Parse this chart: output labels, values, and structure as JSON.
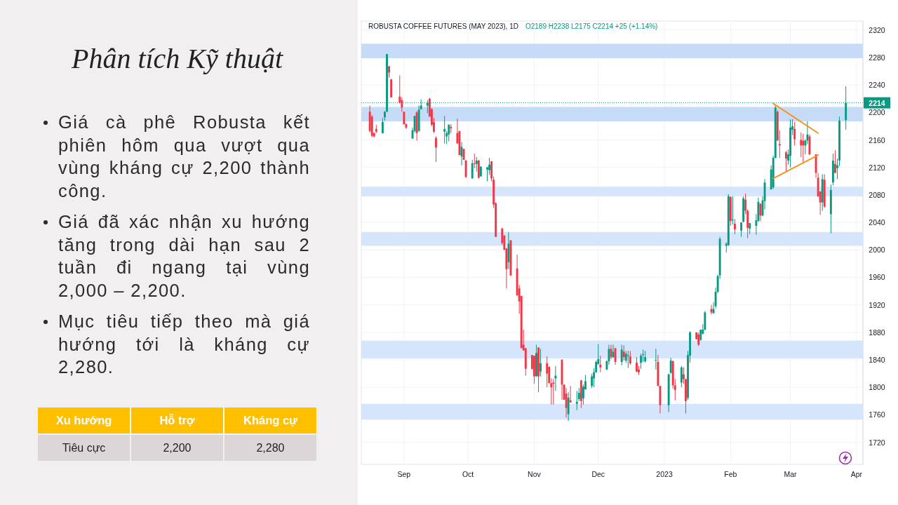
{
  "chart_data": [
    {
      "type": "candlestick",
      "title": "ROBUSTA COFFEE FUTURES (MAY 2023), 1D",
      "subtitle": "O2189 H2238 L2175 C2214 +25 (+1.14%)",
      "x": [
        "2022-08-16",
        "2022-08-17",
        "2022-08-18",
        "2022-08-19",
        "2022-08-22",
        "2022-08-23",
        "2022-08-24",
        "2022-08-25",
        "2022-08-26",
        "2022-08-30",
        "2022-08-31",
        "2022-09-01",
        "2022-09-02",
        "2022-09-05",
        "2022-09-06",
        "2022-09-07",
        "2022-09-08",
        "2022-09-09",
        "2022-09-12",
        "2022-09-13",
        "2022-09-14",
        "2022-09-15",
        "2022-09-16",
        "2022-09-20",
        "2022-09-21",
        "2022-09-22",
        "2022-09-23",
        "2022-09-26",
        "2022-09-27",
        "2022-09-28",
        "2022-09-29",
        "2022-09-30",
        "2022-10-03",
        "2022-10-04",
        "2022-10-05",
        "2022-10-06",
        "2022-10-07",
        "2022-10-10",
        "2022-10-11",
        "2022-10-12",
        "2022-10-13",
        "2022-10-14",
        "2022-10-17",
        "2022-10-18",
        "2022-10-19",
        "2022-10-20",
        "2022-10-21",
        "2022-10-24",
        "2022-10-25",
        "2022-10-26",
        "2022-10-27",
        "2022-10-28",
        "2022-10-31",
        "2022-11-01",
        "2022-11-02",
        "2022-11-03",
        "2022-11-04",
        "2022-11-07",
        "2022-11-08",
        "2022-11-09",
        "2022-11-10",
        "2022-11-11",
        "2022-11-14",
        "2022-11-15",
        "2022-11-16",
        "2022-11-17",
        "2022-11-18",
        "2022-11-21",
        "2022-11-22",
        "2022-11-23",
        "2022-11-24",
        "2022-11-25",
        "2022-11-28",
        "2022-11-29",
        "2022-11-30",
        "2022-12-01",
        "2022-12-02",
        "2022-12-05",
        "2022-12-06",
        "2022-12-07",
        "2022-12-08",
        "2022-12-09",
        "2022-12-12",
        "2022-12-13",
        "2022-12-14",
        "2022-12-15",
        "2022-12-16",
        "2022-12-19",
        "2022-12-20",
        "2022-12-21",
        "2022-12-22",
        "2022-12-23",
        "2022-12-28",
        "2022-12-29",
        "2022-12-30",
        "2023-01-03",
        "2023-01-04",
        "2023-01-05",
        "2023-01-06",
        "2023-01-09",
        "2023-01-10",
        "2023-01-11",
        "2023-01-12",
        "2023-01-13",
        "2023-01-16",
        "2023-01-17",
        "2023-01-18",
        "2023-01-19",
        "2023-01-20",
        "2023-01-23",
        "2023-01-24",
        "2023-01-25",
        "2023-01-26",
        "2023-01-27",
        "2023-01-30",
        "2023-01-31",
        "2023-02-01",
        "2023-02-02",
        "2023-02-03",
        "2023-02-06",
        "2023-02-07",
        "2023-02-08",
        "2023-02-09",
        "2023-02-10",
        "2023-02-13",
        "2023-02-14",
        "2023-02-15",
        "2023-02-16",
        "2023-02-17",
        "2023-02-20",
        "2023-02-21",
        "2023-02-22",
        "2023-02-23",
        "2023-02-24",
        "2023-02-27",
        "2023-02-28",
        "2023-03-01",
        "2023-03-02",
        "2023-03-03",
        "2023-03-06",
        "2023-03-07",
        "2023-03-08",
        "2023-03-09",
        "2023-03-10",
        "2023-03-13",
        "2023-03-14",
        "2023-03-15",
        "2023-03-16",
        "2023-03-17",
        "2023-03-20",
        "2023-03-21",
        "2023-03-22",
        "2023-03-23",
        "2023-03-24",
        "2023-03-27"
      ],
      "ohlc": [
        [
          2201,
          2210,
          2171,
          2173
        ],
        [
          2194,
          2196,
          2164,
          2166
        ],
        [
          2170,
          2171,
          2164,
          2165
        ],
        [
          2176,
          2182,
          2170,
          2172
        ],
        [
          2170,
          2192,
          2169,
          2186
        ],
        [
          2193,
          2202,
          2188,
          2201
        ],
        [
          2201,
          2285,
          2201,
          2285
        ],
        [
          2267,
          2268,
          2251,
          2258
        ],
        [
          2248,
          2249,
          2222,
          2222
        ],
        [
          2223,
          2254,
          2213,
          2214
        ],
        [
          2218,
          2222,
          2201,
          2207
        ],
        [
          2201,
          2201,
          2182,
          2183
        ],
        [
          2183,
          2184,
          2176,
          2178
        ],
        [
          2162,
          2178,
          2162,
          2174
        ],
        [
          2173,
          2195,
          2171,
          2195
        ],
        [
          2200,
          2202,
          2159,
          2170
        ],
        [
          2173,
          2210,
          2172,
          2204
        ],
        [
          2205,
          2219,
          2204,
          2210
        ],
        [
          2210,
          2218,
          2199,
          2214
        ],
        [
          2220,
          2221,
          2194,
          2194
        ],
        [
          2205,
          2206,
          2180,
          2182
        ],
        [
          2186,
          2192,
          2170,
          2172
        ],
        [
          2163,
          2165,
          2128,
          2149
        ],
        [
          2172,
          2195,
          2155,
          2176
        ],
        [
          2165,
          2173,
          2154,
          2170
        ],
        [
          2168,
          2183,
          2158,
          2182
        ],
        [
          2179,
          2183,
          2170,
          2177
        ],
        [
          2170,
          2191,
          2154,
          2155
        ],
        [
          2173,
          2173,
          2138,
          2138
        ],
        [
          2136,
          2157,
          2123,
          2150
        ],
        [
          2147,
          2147,
          2131,
          2131
        ],
        [
          2130,
          2131,
          2105,
          2106
        ],
        [
          2104,
          2131,
          2104,
          2126
        ],
        [
          2126,
          2140,
          2119,
          2125
        ],
        [
          2125,
          2135,
          2114,
          2130
        ],
        [
          2130,
          2131,
          2104,
          2105
        ],
        [
          2107,
          2122,
          2107,
          2121
        ],
        [
          2117,
          2121,
          2100,
          2120
        ],
        [
          2116,
          2134,
          2109,
          2124
        ],
        [
          2129,
          2129,
          2100,
          2104
        ],
        [
          2102,
          2107,
          2061,
          2066
        ],
        [
          2068,
          2069,
          2019,
          2019
        ],
        [
          2031,
          2032,
          2007,
          2010
        ],
        [
          2021,
          2021,
          2000,
          2000
        ],
        [
          2002,
          2003,
          1944,
          1972
        ],
        [
          1982,
          2026,
          1972,
          2009
        ],
        [
          2014,
          2014,
          1962,
          1963
        ],
        [
          1973,
          1993,
          1933,
          1934
        ],
        [
          1944,
          1949,
          1907,
          1925
        ],
        [
          1933,
          1933,
          1857,
          1857
        ],
        [
          1862,
          1884,
          1853,
          1854
        ],
        [
          1857,
          1857,
          1817,
          1827
        ],
        [
          1847,
          1847,
          1826,
          1827
        ],
        [
          1846,
          1846,
          1805,
          1816
        ],
        [
          1816,
          1862,
          1816,
          1850
        ],
        [
          1858,
          1858,
          1793,
          1816
        ],
        [
          1823,
          1856,
          1816,
          1835
        ],
        [
          1835,
          1845,
          1800,
          1820
        ],
        [
          1830,
          1830,
          1806,
          1806
        ],
        [
          1806,
          1813,
          1775,
          1800
        ],
        [
          1807,
          1812,
          1775,
          1805
        ],
        [
          1813,
          1831,
          1795,
          1817
        ],
        [
          1840,
          1841,
          1782,
          1804
        ],
        [
          1804,
          1804,
          1782,
          1782
        ],
        [
          1791,
          1799,
          1756,
          1770
        ],
        [
          1761,
          1793,
          1751,
          1785
        ],
        [
          1781,
          1802,
          1778,
          1778
        ],
        [
          1776,
          1795,
          1767,
          1779
        ],
        [
          1783,
          1799,
          1780,
          1792
        ],
        [
          1810,
          1811,
          1770,
          1780
        ],
        [
          1784,
          1804,
          1775,
          1801
        ],
        [
          1797,
          1818,
          1797,
          1809
        ],
        [
          1802,
          1820,
          1799,
          1816
        ],
        [
          1813,
          1828,
          1800,
          1822
        ],
        [
          1822,
          1839,
          1821,
          1837
        ],
        [
          1834,
          1863,
          1833,
          1841
        ],
        [
          1833,
          1846,
          1822,
          1829
        ],
        [
          1826,
          1839,
          1825,
          1838
        ],
        [
          1838,
          1862,
          1833,
          1856
        ],
        [
          1856,
          1862,
          1841,
          1844
        ],
        [
          1844,
          1862,
          1843,
          1852
        ],
        [
          1857,
          1857,
          1833,
          1837
        ],
        [
          1837,
          1862,
          1832,
          1855
        ],
        [
          1852,
          1861,
          1839,
          1844
        ],
        [
          1839,
          1853,
          1836,
          1849
        ],
        [
          1846,
          1853,
          1828,
          1847
        ],
        [
          1845,
          1853,
          1833,
          1835
        ],
        [
          1836,
          1844,
          1822,
          1823
        ],
        [
          1826,
          1831,
          1818,
          1822
        ],
        [
          1836,
          1849,
          1827,
          1846
        ],
        [
          1847,
          1855,
          1837,
          1848
        ],
        [
          1838,
          1853,
          1836,
          1844
        ],
        [
          1839,
          1856,
          1826,
          1840
        ],
        [
          1837,
          1847,
          1802,
          1802
        ],
        [
          1802,
          1802,
          1762,
          1774
        ],
        [
          1774,
          1820,
          1764,
          1819
        ],
        [
          1821,
          1843,
          1820,
          1839
        ],
        [
          1838,
          1839,
          1798,
          1803
        ],
        [
          1803,
          1812,
          1781,
          1796
        ],
        [
          1807,
          1831,
          1800,
          1829
        ],
        [
          1819,
          1829,
          1805,
          1812
        ],
        [
          1812,
          1812,
          1762,
          1780
        ],
        [
          1785,
          1853,
          1782,
          1847
        ],
        [
          1846,
          1882,
          1836,
          1880
        ],
        [
          1880,
          1880,
          1870,
          1870
        ],
        [
          1877,
          1880,
          1860,
          1862
        ],
        [
          1869,
          1884,
          1868,
          1884
        ],
        [
          1878,
          1892,
          1877,
          1884
        ],
        [
          1884,
          1911,
          1883,
          1909
        ],
        [
          1914,
          1920,
          1906,
          1909
        ],
        [
          1908,
          1924,
          1907,
          1914
        ],
        [
          1918,
          1945,
          1915,
          1939
        ],
        [
          1939,
          1964,
          1937,
          1962
        ],
        [
          1963,
          2019,
          1958,
          2016
        ],
        [
          2006,
          2011,
          1996,
          2009
        ],
        [
          2007,
          2081,
          2006,
          2078
        ],
        [
          2077,
          2078,
          2035,
          2042
        ],
        [
          2044,
          2078,
          2037,
          2044
        ],
        [
          2038,
          2045,
          2023,
          2030
        ],
        [
          2028,
          2040,
          2019,
          2040
        ],
        [
          2041,
          2078,
          2040,
          2075
        ],
        [
          2073,
          2082,
          2052,
          2057
        ],
        [
          2057,
          2059,
          2017,
          2032
        ],
        [
          2031,
          2039,
          2023,
          2039
        ],
        [
          2035,
          2052,
          2022,
          2043
        ],
        [
          2042,
          2076,
          2041,
          2070
        ],
        [
          2067,
          2068,
          2042,
          2050
        ],
        [
          2050,
          2078,
          2049,
          2072
        ],
        [
          2071,
          2103,
          2059,
          2098
        ],
        [
          2088,
          2123,
          2088,
          2117
        ],
        [
          2091,
          2137,
          2089,
          2134
        ],
        [
          2134,
          2210,
          2133,
          2207
        ],
        [
          2201,
          2203,
          2159,
          2159
        ],
        [
          2154,
          2174,
          2134,
          2152
        ],
        [
          2142,
          2144,
          2113,
          2133
        ],
        [
          2130,
          2146,
          2124,
          2139
        ],
        [
          2137,
          2190,
          2120,
          2178
        ],
        [
          2175,
          2190,
          2167,
          2180
        ],
        [
          2176,
          2186,
          2152,
          2161
        ],
        [
          2160,
          2171,
          2135,
          2152
        ],
        [
          2159,
          2169,
          2126,
          2152
        ],
        [
          2152,
          2161,
          2139,
          2159
        ],
        [
          2159,
          2187,
          2154,
          2168
        ],
        [
          2165,
          2168,
          2138,
          2139
        ],
        [
          2139,
          2139,
          2105,
          2112
        ],
        [
          2105,
          2112,
          2077,
          2078
        ],
        [
          2085,
          2085,
          2051,
          2069
        ],
        [
          2069,
          2110,
          2057,
          2103
        ],
        [
          2102,
          2110,
          2061,
          2063
        ],
        [
          2052,
          2095,
          2024,
          2087
        ],
        [
          2098,
          2140,
          2094,
          2130
        ],
        [
          2125,
          2145,
          2112,
          2112
        ],
        [
          2119,
          2133,
          2103,
          2123
        ],
        [
          2130,
          2194,
          2122,
          2188
        ],
        [
          2189,
          2238,
          2175,
          2214
        ]
      ],
      "series": [
        {
          "type": "line",
          "color": "#f7931e",
          "x": [
            "2023-02-21",
            "2023-03-14"
          ],
          "values": [
            2213,
            2170
          ]
        },
        {
          "type": "line",
          "color": "#f7931e",
          "x": [
            "2023-02-21",
            "2023-03-14"
          ],
          "values": [
            2104,
            2138
          ]
        }
      ],
      "xlim": [
        "2022-08-12",
        "2023-04-04"
      ],
      "xticks": [
        {
          "value": "2022-09-01",
          "label": "Sep"
        },
        {
          "value": "2022-10-01",
          "label": "Oct"
        },
        {
          "value": "2022-11-01",
          "label": "Nov"
        },
        {
          "value": "2022-12-01",
          "label": "Dec"
        },
        {
          "value": "2023-01-01",
          "label": "2023"
        },
        {
          "value": "2023-02-01",
          "label": "Feb"
        },
        {
          "value": "2023-03-01",
          "label": "Mar"
        },
        {
          "value": "2023-04-01",
          "label": "Apr"
        }
      ],
      "ylim": [
        1688,
        2333
      ],
      "yticks": [
        1720,
        1760,
        1800,
        1840,
        1880,
        1920,
        1960,
        2000,
        2040,
        2080,
        2120,
        2160,
        2200,
        2240,
        2280,
        2320
      ],
      "grid": true,
      "bands": [
        {
          "axis": "y",
          "from": 2279,
          "to": 2300,
          "color": "#c6dbf8"
        },
        {
          "axis": "y",
          "from": 2187,
          "to": 2208,
          "color": "#c6dbf8"
        },
        {
          "axis": "y",
          "from": 2078,
          "to": 2092,
          "color": "#d5e5fb"
        },
        {
          "axis": "y",
          "from": 2006,
          "to": 2026,
          "color": "#d5e5fb"
        },
        {
          "axis": "y",
          "from": 1842,
          "to": 1868,
          "color": "#d5e5fb"
        },
        {
          "axis": "y",
          "from": 1753,
          "to": 1776,
          "color": "#d5e5fb"
        }
      ],
      "ref_lines": [
        {
          "axis": "y",
          "value": 2214,
          "label": "2214",
          "color": "#089981",
          "line_style": "dotted"
        }
      ]
    },
    {
      "type": "other",
      "title": "Phân tích Kỹ thuật",
      "annotations": [
        "Giá cà phê Robusta kết phiên hôm qua vượt qua vùng kháng cự 2,200 thành công.",
        "Giá đã xác nhận xu hướng tăng trong dài hạn sau 2 tuần đi ngang tại vùng 2,000 – 2,200.",
        "Mục tiêu tiếp theo mà giá hướng tới là kháng cự 2,280.",
        "Xu hướng",
        "Hỗ trợ",
        "Kháng cự",
        "Tiêu cực",
        "2,200",
        "2,280"
      ]
    }
  ]
}
